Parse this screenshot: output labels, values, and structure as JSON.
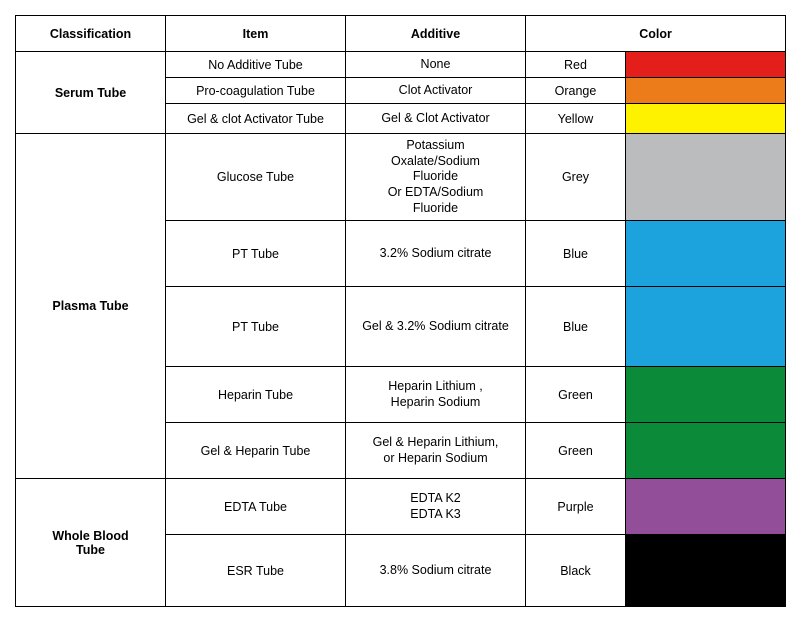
{
  "table": {
    "headers": {
      "classification": "Classification",
      "item": "Item",
      "additive": "Additive",
      "color": "Color"
    },
    "groups": [
      {
        "classification": "Serum Tube",
        "rows": [
          {
            "item": "No Additive Tube",
            "additive": "None",
            "color_name": "Red",
            "swatch": "#e41e1a",
            "h": "h-sm"
          },
          {
            "item": "Pro-coagulation Tube",
            "additive": "Clot Activator",
            "color_name": "Orange",
            "swatch": "#ec7c1a",
            "h": "h-sm"
          },
          {
            "item": "Gel & clot Activator Tube",
            "additive": "Gel & Clot  Activator",
            "color_name": "Yellow",
            "swatch": "#fff200",
            "h": "h-md"
          }
        ]
      },
      {
        "classification": "Plasma Tube",
        "rows": [
          {
            "item": "Glucose Tube",
            "additive": "Potassium\nOxalate/Sodium\nFluoride\nOr EDTA/Sodium\nFluoride",
            "color_name": "Grey",
            "swatch": "#babcbe",
            "h": "h-lg"
          },
          {
            "item": "PT Tube",
            "additive": "3.2% Sodium citrate",
            "color_name": "Blue",
            "swatch": "#1ca3dd",
            "h": "h-xx"
          },
          {
            "item": "PT Tube",
            "additive": "Gel & 3.2% Sodium citrate",
            "color_name": "Blue",
            "swatch": "#1ca3dd",
            "h": "h-xl"
          },
          {
            "item": "Heparin  Tube",
            "additive": "Heparin Lithium ,\nHeparin Sodium",
            "color_name": "Green",
            "swatch": "#0b8b3a",
            "h": "h-mdlg"
          },
          {
            "item": "Gel & Heparin  Tube",
            "additive": "Gel &  Heparin Lithium,\nor Heparin Sodium",
            "color_name": "Green",
            "swatch": "#0b8b3a",
            "h": "h-mdlg"
          }
        ]
      },
      {
        "classification": "Whole Blood\nTube",
        "rows": [
          {
            "item": "EDTA Tube",
            "additive": "EDTA  K2\nEDTA  K3",
            "color_name": "Purple",
            "swatch": "#924e98",
            "h": "h-mdlg"
          },
          {
            "item": "ESR Tube",
            "additive": "3.8% Sodium citrate",
            "color_name": "Black",
            "swatch": "#000000",
            "h": "h-lg"
          }
        ]
      }
    ],
    "border_color": "#000000",
    "background": "#ffffff",
    "font_family": "Arial",
    "header_fontsize": 12.5,
    "cell_fontsize": 12.5
  }
}
